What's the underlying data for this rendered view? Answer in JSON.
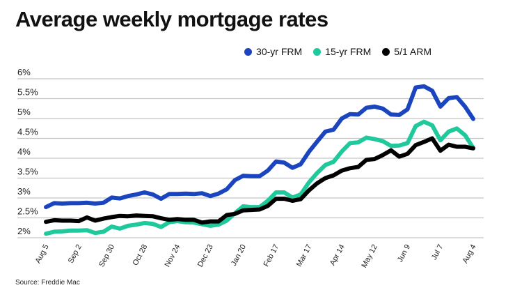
{
  "chart_data": {
    "type": "line",
    "title": "Average weekly mortgage rates",
    "source": "Source: Freddie Mac",
    "ylim": [
      2,
      6
    ],
    "yticks": [
      "2%",
      "2.5%",
      "3%",
      "3.5%",
      "4%",
      "4.5%",
      "5%",
      "5.5%",
      "6%"
    ],
    "ytick_values": [
      2,
      2.5,
      3,
      3.5,
      4,
      4.5,
      5,
      5.5,
      6
    ],
    "xtick_labels": [
      "Aug 5",
      "Sep 2",
      "Sep 30",
      "Oct 28",
      "Nov 24",
      "Dec 23",
      "Jan 20",
      "Feb 17",
      "Mar 17",
      "Apr 14",
      "May 12",
      "Jun 9",
      "Jul 7",
      "Aug 4"
    ],
    "xtick_every_weeks": 4,
    "grid": "horizontal",
    "legend_placement": "top-right",
    "series": [
      {
        "name": "30-yr FRM",
        "color": "#1a45bf",
        "values": [
          2.77,
          2.87,
          2.86,
          2.87,
          2.87,
          2.88,
          2.86,
          2.88,
          3.01,
          2.99,
          3.05,
          3.09,
          3.14,
          3.09,
          2.98,
          3.1,
          3.1,
          3.11,
          3.1,
          3.12,
          3.05,
          3.11,
          3.22,
          3.45,
          3.56,
          3.55,
          3.55,
          3.69,
          3.92,
          3.89,
          3.76,
          3.85,
          4.16,
          4.42,
          4.67,
          4.72,
          5.0,
          5.11,
          5.1,
          5.27,
          5.3,
          5.25,
          5.1,
          5.09,
          5.23,
          5.78,
          5.81,
          5.7,
          5.3,
          5.51,
          5.54,
          5.3,
          4.99
        ]
      },
      {
        "name": "15-yr FRM",
        "color": "#1fc99b",
        "values": [
          2.1,
          2.15,
          2.16,
          2.18,
          2.18,
          2.19,
          2.12,
          2.15,
          2.28,
          2.23,
          2.3,
          2.33,
          2.37,
          2.35,
          2.27,
          2.39,
          2.42,
          2.39,
          2.38,
          2.34,
          2.3,
          2.33,
          2.43,
          2.62,
          2.79,
          2.77,
          2.77,
          2.93,
          3.14,
          3.14,
          3.01,
          3.09,
          3.39,
          3.63,
          3.83,
          3.91,
          4.17,
          4.38,
          4.4,
          4.52,
          4.48,
          4.43,
          4.31,
          4.32,
          4.38,
          4.81,
          4.92,
          4.83,
          4.45,
          4.67,
          4.75,
          4.58,
          4.26
        ]
      },
      {
        "name": "5/1 ARM",
        "color": "#000000",
        "values": [
          2.4,
          2.44,
          2.43,
          2.43,
          2.42,
          2.51,
          2.43,
          2.48,
          2.52,
          2.55,
          2.54,
          2.56,
          2.55,
          2.54,
          2.49,
          2.45,
          2.47,
          2.45,
          2.45,
          2.38,
          2.41,
          2.41,
          2.57,
          2.6,
          2.69,
          2.7,
          2.71,
          2.8,
          2.98,
          2.98,
          2.93,
          2.97,
          3.19,
          3.37,
          3.5,
          3.57,
          3.69,
          3.75,
          3.78,
          3.96,
          3.98,
          4.08,
          4.2,
          4.04,
          4.11,
          4.33,
          4.41,
          4.5,
          4.19,
          4.34,
          4.29,
          4.29,
          4.25
        ]
      }
    ]
  }
}
